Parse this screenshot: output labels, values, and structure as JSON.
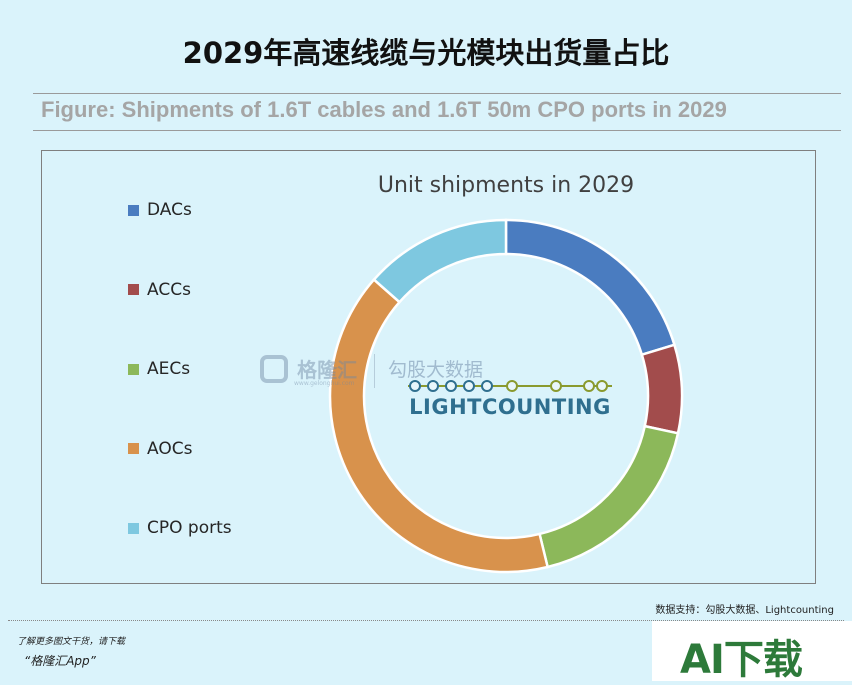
{
  "header": {
    "title": "2029年高速线缆与光模块出货量占比",
    "figure_caption": "Figure: Shipments of 1.6T cables and 1.6T 50m CPO ports in 2029"
  },
  "chart_data": {
    "type": "donut",
    "title": "Unit shipments in 2029",
    "legend_position": "left",
    "grid": false,
    "categories": [
      "DACs",
      "ACCs",
      "AECs",
      "AOCs",
      "CPO ports"
    ],
    "values": [
      20.3,
      8.1,
      17.8,
      40.3,
      13.5
    ],
    "colors": [
      "#4a7cc0",
      "#a24c4c",
      "#8cb85a",
      "#d8924c",
      "#7ec8e0"
    ]
  },
  "watermarks": {
    "gelonghui": "格隆汇",
    "gelonghui_url": "www.gelonghui.com",
    "gougu": "勾股大数据",
    "lightcounting": "LIGHTCOUNTING"
  },
  "footer": {
    "source": "数据支持：勾股大数据、Lightcounting",
    "promo_line1": "了解更多图文干货，请下载",
    "promo_line2": "“格隆汇App”",
    "ai_badge": "AI下载"
  }
}
